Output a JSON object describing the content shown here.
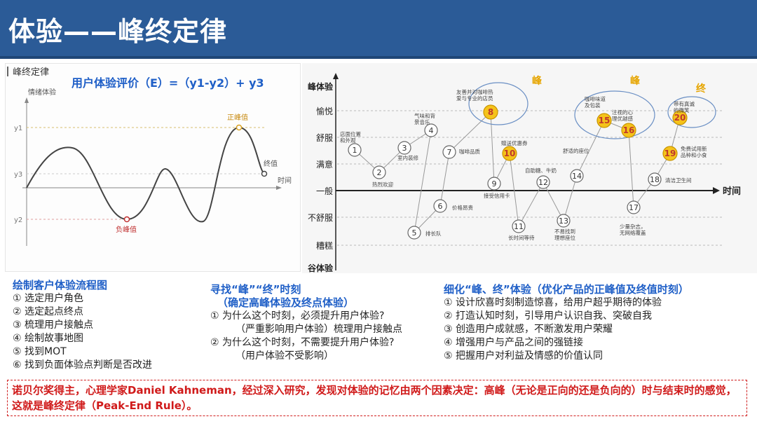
{
  "header": {
    "title": "体验——峰终定律"
  },
  "formula": "用户体验评价（E）=（y1-y2）+ y3",
  "left_chart": {
    "panel_title": "峰终定律",
    "y_axis_title": "情绪体验",
    "y_labels": [
      "y1",
      "y3",
      "y2"
    ],
    "x_axis_label": "时间",
    "peak_label": "正峰值",
    "trough_label": "负峰值",
    "end_label": "终值"
  },
  "journey": {
    "levels": [
      "峰体验",
      "愉悦",
      "舒服",
      "满意",
      "一般",
      "不舒服",
      "糟糕",
      "谷体验"
    ],
    "time_label": "时间",
    "peak_marks": [
      "峰",
      "峰",
      "终"
    ],
    "points": [
      {
        "n": "1",
        "label": "店面位置和外观"
      },
      {
        "n": "2",
        "label": "热烈欢迎"
      },
      {
        "n": "3",
        "label": "室内装修"
      },
      {
        "n": "4",
        "label": "气味和背景音乐"
      },
      {
        "n": "5",
        "label": "排长队"
      },
      {
        "n": "6",
        "label": "价格昂贵"
      },
      {
        "n": "7",
        "label": "咖啡品质"
      },
      {
        "n": "8",
        "label": "友善并对咖啡热爱与专业的店员"
      },
      {
        "n": "9",
        "label": "接受信用卡"
      },
      {
        "n": "10",
        "label": "赠送优惠券"
      },
      {
        "n": "11",
        "label": "长时间等待"
      },
      {
        "n": "12",
        "label": "自助糖、牛奶"
      },
      {
        "n": "13",
        "label": "不易找到理想座位"
      },
      {
        "n": "14",
        "label": "舒适的座位"
      },
      {
        "n": "15",
        "label": "咖啡味道及包装"
      },
      {
        "n": "16",
        "label": "注视的心理优越感"
      },
      {
        "n": "17",
        "label": "少量杂志，无网络覆盖"
      },
      {
        "n": "18",
        "label": "清洁卫生间"
      },
      {
        "n": "19",
        "label": "免费试用新品种和小食"
      },
      {
        "n": "20",
        "label": "带有真诚的微笑"
      }
    ]
  },
  "col1": {
    "heading": "绘制客户体验流程图",
    "items": [
      "① 选定用户角色",
      "② 选定起点终点",
      "③ 梳理用户接触点",
      "④ 绘制故事地图",
      "⑤ 找到MOT",
      "⑥ 找到负面体验点判断是否改进"
    ]
  },
  "col2": {
    "heading": "寻找“峰”“终”时刻",
    "subheading": "（确定高峰体验及终点体验）",
    "q1": "① 为什么这个时刻，必须提升用户体验?",
    "q1b": "（严重影响用户体验）梳理用户接触点",
    "q2": "② 为什么这个时刻，不需要提升用户体验?",
    "q2b": "（用户体验不受影响）"
  },
  "col3": {
    "heading": "细化“峰、终”体验（优化产品的正峰值及终值时刻）",
    "items": [
      "① 设计欣喜时刻制造惊喜，给用户超乎期待的体验",
      "② 打造认知时刻，引导用户认识自我、突破自我",
      "③ 创造用户成就感，不断激发用户荣耀",
      "④ 增强用户与产品之间的强链接",
      "⑤ 把握用户对利益及情感的价值认同"
    ]
  },
  "note": "诺贝尔奖得主，心理学家Daniel Kahneman，经过深入研究，发现对体验的记忆由两个因素决定：高峰（无论是正向的还是负向的）时与结束时的感觉，这就是峰终定律（Peak-End Rule）。",
  "colors": {
    "header": "#2b5b97",
    "accent_blue": "#1f5fc7",
    "note_red": "#d01a1a",
    "node_yellow": "#f5c31b",
    "curve_dark": "#444444"
  }
}
